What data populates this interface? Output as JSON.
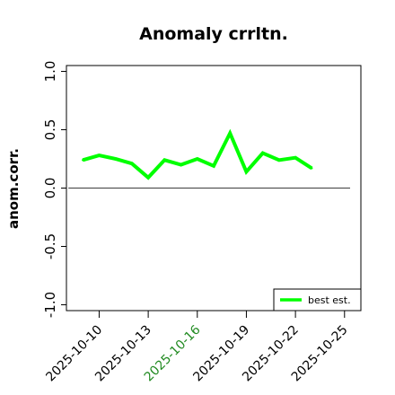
{
  "chart_data": {
    "type": "line",
    "title": "Anomaly crrltn.",
    "xlabel": "",
    "ylabel": "anom.corr.",
    "x": [
      "2025-10-09",
      "2025-10-10",
      "2025-10-11",
      "2025-10-12",
      "2025-10-13",
      "2025-10-14",
      "2025-10-15",
      "2025-10-16",
      "2025-10-17",
      "2025-10-18",
      "2025-10-19",
      "2025-10-20",
      "2025-10-21",
      "2025-10-22",
      "2025-10-23"
    ],
    "series": [
      {
        "name": "best est.",
        "color": "#00ff00",
        "values": [
          0.24,
          0.28,
          0.25,
          0.21,
          0.09,
          0.24,
          0.2,
          0.25,
          0.19,
          0.47,
          0.14,
          0.3,
          0.24,
          0.26,
          0.17
        ]
      }
    ],
    "reference_line": {
      "y": 0.0,
      "color": "#555555"
    },
    "ylim": [
      -1.05,
      1.05
    ],
    "xlim": [
      "2025-10-08",
      "2025-10-26"
    ],
    "yticks": [
      -1.0,
      -0.5,
      0.0,
      0.5,
      1.0
    ],
    "ytick_labels": [
      "-1.0",
      "-0.5",
      "0.0",
      "0.5",
      "1.0"
    ],
    "xticks": [
      "2025-10-10",
      "2025-10-13",
      "2025-10-16",
      "2025-10-19",
      "2025-10-22",
      "2025-10-25"
    ],
    "xtick_labels": [
      "2025-10-10",
      "2025-10-13",
      "2025-10-16",
      "2025-10-19",
      "2025-10-22",
      "2025-10-25"
    ],
    "xtick_colors": [
      "#000000",
      "#000000",
      "#228b22",
      "#000000",
      "#000000",
      "#000000"
    ],
    "grid": false,
    "legend_position": "bottom-right"
  }
}
